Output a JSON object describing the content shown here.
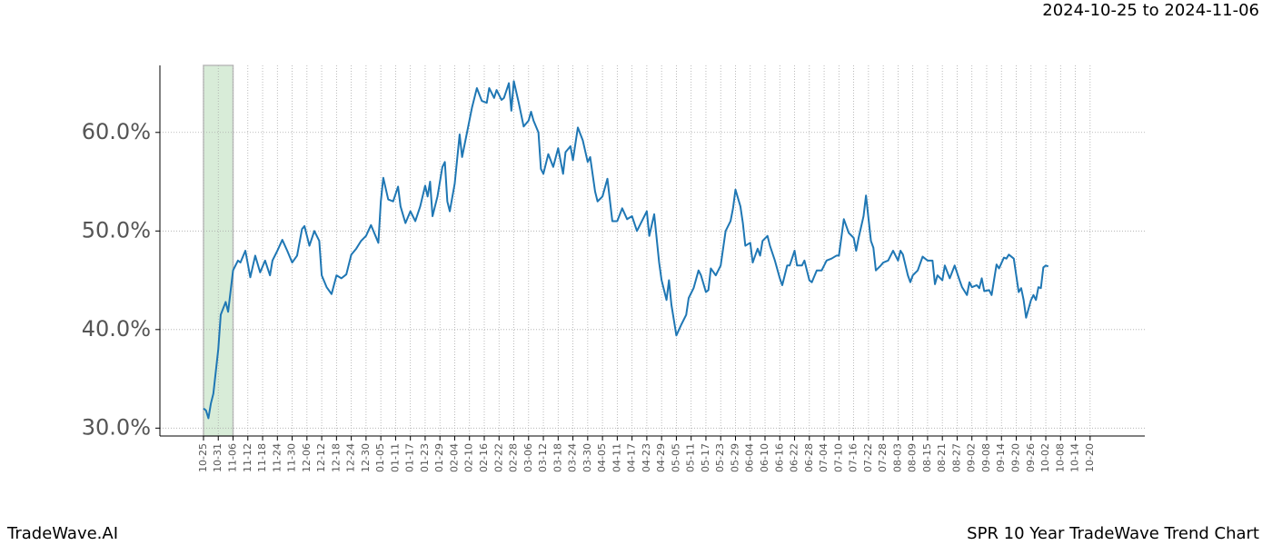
{
  "chart_data": {
    "type": "line",
    "title": "2024-10-25 to 2024-11-06",
    "footer_left": "TradeWave.AI",
    "footer_right": "SPR 10 Year TradeWave Trend Chart",
    "color": "#1f77b4",
    "grid": true,
    "highlight": {
      "range": [
        0,
        12
      ],
      "color": "#d8ecd8"
    },
    "xlim": [
      -17.7,
      382.2
    ],
    "ylim": [
      29.2,
      66.8
    ],
    "yticks": [
      {
        "value": 30,
        "label": "30.0%"
      },
      {
        "value": 40,
        "label": "40.0%"
      },
      {
        "value": 50,
        "label": "50.0%"
      },
      {
        "value": 60,
        "label": "60.0%"
      }
    ],
    "xticks": [
      {
        "value": 0,
        "label": "10-25"
      },
      {
        "value": 6,
        "label": "10-31"
      },
      {
        "value": 12,
        "label": "11-06"
      },
      {
        "value": 18,
        "label": "11-12"
      },
      {
        "value": 24,
        "label": "11-18"
      },
      {
        "value": 30,
        "label": "11-24"
      },
      {
        "value": 36,
        "label": "11-30"
      },
      {
        "value": 42,
        "label": "12-06"
      },
      {
        "value": 48,
        "label": "12-12"
      },
      {
        "value": 54,
        "label": "12-18"
      },
      {
        "value": 60,
        "label": "12-24"
      },
      {
        "value": 66,
        "label": "12-30"
      },
      {
        "value": 72,
        "label": "01-05"
      },
      {
        "value": 78,
        "label": "01-11"
      },
      {
        "value": 84,
        "label": "01-17"
      },
      {
        "value": 90,
        "label": "01-23"
      },
      {
        "value": 96,
        "label": "01-29"
      },
      {
        "value": 102,
        "label": "02-04"
      },
      {
        "value": 108,
        "label": "02-10"
      },
      {
        "value": 114,
        "label": "02-16"
      },
      {
        "value": 120,
        "label": "02-22"
      },
      {
        "value": 126,
        "label": "02-28"
      },
      {
        "value": 132,
        "label": "03-06"
      },
      {
        "value": 138,
        "label": "03-12"
      },
      {
        "value": 144,
        "label": "03-18"
      },
      {
        "value": 150,
        "label": "03-24"
      },
      {
        "value": 156,
        "label": "03-30"
      },
      {
        "value": 162,
        "label": "04-05"
      },
      {
        "value": 168,
        "label": "04-11"
      },
      {
        "value": 174,
        "label": "04-17"
      },
      {
        "value": 180,
        "label": "04-23"
      },
      {
        "value": 186,
        "label": "04-29"
      },
      {
        "value": 192,
        "label": "05-05"
      },
      {
        "value": 198,
        "label": "05-11"
      },
      {
        "value": 204,
        "label": "05-17"
      },
      {
        "value": 210,
        "label": "05-23"
      },
      {
        "value": 216,
        "label": "05-29"
      },
      {
        "value": 222,
        "label": "06-04"
      },
      {
        "value": 228,
        "label": "06-10"
      },
      {
        "value": 234,
        "label": "06-16"
      },
      {
        "value": 240,
        "label": "06-22"
      },
      {
        "value": 246,
        "label": "06-28"
      },
      {
        "value": 252,
        "label": "07-04"
      },
      {
        "value": 258,
        "label": "07-10"
      },
      {
        "value": 264,
        "label": "07-16"
      },
      {
        "value": 270,
        "label": "07-22"
      },
      {
        "value": 276,
        "label": "07-28"
      },
      {
        "value": 282,
        "label": "08-03"
      },
      {
        "value": 288,
        "label": "08-09"
      },
      {
        "value": 294,
        "label": "08-15"
      },
      {
        "value": 300,
        "label": "08-21"
      },
      {
        "value": 306,
        "label": "08-27"
      },
      {
        "value": 312,
        "label": "09-02"
      },
      {
        "value": 318,
        "label": "09-08"
      },
      {
        "value": 324,
        "label": "09-14"
      },
      {
        "value": 330,
        "label": "09-20"
      },
      {
        "value": 336,
        "label": "09-26"
      },
      {
        "value": 342,
        "label": "10-02"
      },
      {
        "value": 348,
        "label": "10-08"
      },
      {
        "value": 354,
        "label": "10-14"
      },
      {
        "value": 360,
        "label": "10-20"
      }
    ],
    "x": [
      0,
      1,
      2,
      3,
      4,
      6,
      7,
      9,
      10,
      12,
      14,
      15,
      17,
      19,
      21,
      23,
      25,
      27,
      28,
      30,
      32,
      34,
      36,
      38,
      40,
      41,
      43,
      45,
      47,
      48,
      50,
      52,
      54,
      56,
      58,
      60,
      62,
      64,
      66,
      68,
      70,
      71,
      72,
      73,
      75,
      77,
      79,
      80,
      82,
      84,
      86,
      88,
      90,
      91,
      92,
      93,
      95,
      97,
      98,
      99,
      100,
      102,
      104,
      105,
      107,
      109,
      111,
      113,
      115,
      116,
      118,
      119,
      121,
      122,
      124,
      125,
      126,
      128,
      130,
      132,
      133,
      134,
      136,
      137,
      138,
      140,
      142,
      144,
      146,
      147,
      149,
      150,
      152,
      154,
      156,
      157,
      159,
      160,
      162,
      164,
      166,
      168,
      170,
      172,
      174,
      176,
      178,
      180,
      181,
      183,
      185,
      186,
      188,
      189,
      190,
      192,
      194,
      196,
      197,
      199,
      201,
      202,
      204,
      205,
      206,
      208,
      210,
      212,
      214,
      215,
      216,
      218,
      219,
      220,
      222,
      223,
      224,
      225,
      226,
      227,
      229,
      230,
      232,
      234,
      235,
      237,
      238,
      240,
      241,
      243,
      244,
      246,
      247,
      249,
      251,
      253,
      255,
      257,
      258,
      260,
      262,
      264,
      265,
      266,
      268,
      269,
      271,
      272,
      273,
      275,
      276,
      278,
      280,
      281,
      282,
      283,
      284,
      286,
      287,
      288,
      290,
      292,
      294,
      296,
      297,
      298,
      300,
      301,
      303,
      305,
      307,
      308,
      310,
      311,
      312,
      314,
      315,
      316,
      317,
      319,
      320,
      322,
      323,
      325,
      326,
      327,
      329,
      330,
      331,
      332,
      333,
      334,
      336,
      337,
      338,
      339,
      340,
      341,
      342,
      343
    ],
    "values": [
      32.0,
      31.8,
      31.0,
      32.5,
      33.5,
      38,
      41.5,
      42.8,
      41.8,
      46,
      47,
      46.8,
      48,
      45.3,
      47.5,
      45.8,
      47,
      45.5,
      47,
      48,
      49.1,
      48,
      46.8,
      47.5,
      50.2,
      50.5,
      48.5,
      50.0,
      49,
      45.5,
      44.3,
      43.6,
      45.5,
      45.2,
      45.6,
      47.6,
      48.2,
      49,
      49.5,
      50.6,
      49.4,
      48.8,
      53.0,
      55.4,
      53.2,
      53.0,
      54.5,
      52.5,
      50.8,
      52.0,
      51.0,
      52.5,
      54.6,
      53.5,
      55,
      51.5,
      53.5,
      56.5,
      57.0,
      53.0,
      52.0,
      54.8,
      59.8,
      57.5,
      60.0,
      62.5,
      64.5,
      63.2,
      63.0,
      64.5,
      63.5,
      64.3,
      63.3,
      63.5,
      65.0,
      62.2,
      65.2,
      63.0,
      60.6,
      61.2,
      62.1,
      61.2,
      60.0,
      56.3,
      55.8,
      57.8,
      56.5,
      58.4,
      55.8,
      58.0,
      58.6,
      57.2,
      60.5,
      59.2,
      57.0,
      57.5,
      54.0,
      53.0,
      53.5,
      55.3,
      51.0,
      51.0,
      52.3,
      51.2,
      51.5,
      50.0,
      51,
      52,
      49.5,
      51.7,
      46.8,
      45,
      43,
      45,
      42.5,
      39.4,
      40.5,
      41.5,
      43.2,
      44.2,
      46,
      45.5,
      43.8,
      44,
      46.2,
      45.5,
      46.5,
      50,
      51,
      52.3,
      54.2,
      52.5,
      50.8,
      48.5,
      48.8,
      46.8,
      47.5,
      48.2,
      47.5,
      49,
      49.5,
      48.5,
      47,
      45.2,
      44.5,
      46.5,
      46.5,
      48,
      46.5,
      46.5,
      47,
      45,
      44.8,
      46,
      46,
      47,
      47.2,
      47.5,
      47.5,
      51.2,
      49.8,
      49.3,
      48,
      49.3,
      51.5,
      53.6,
      49,
      48.3,
      46,
      46.5,
      46.8,
      47,
      48,
      47.5,
      47,
      48,
      47.6,
      45.5,
      44.8,
      45.5,
      46,
      47.4,
      47,
      47,
      44.6,
      45.5,
      45,
      46.5,
      45.2,
      46.5,
      45,
      44.3,
      43.5,
      44.8,
      44.3,
      44.5,
      44.2,
      45.2,
      43.9,
      44,
      43.5,
      46.6,
      46.2,
      47.3,
      47.2,
      47.6,
      47.2,
      45.5,
      43.8,
      44.2,
      43,
      41.2,
      43,
      43.5,
      43,
      44.3,
      44.2,
      46.3,
      46.5,
      46.4
    ]
  }
}
